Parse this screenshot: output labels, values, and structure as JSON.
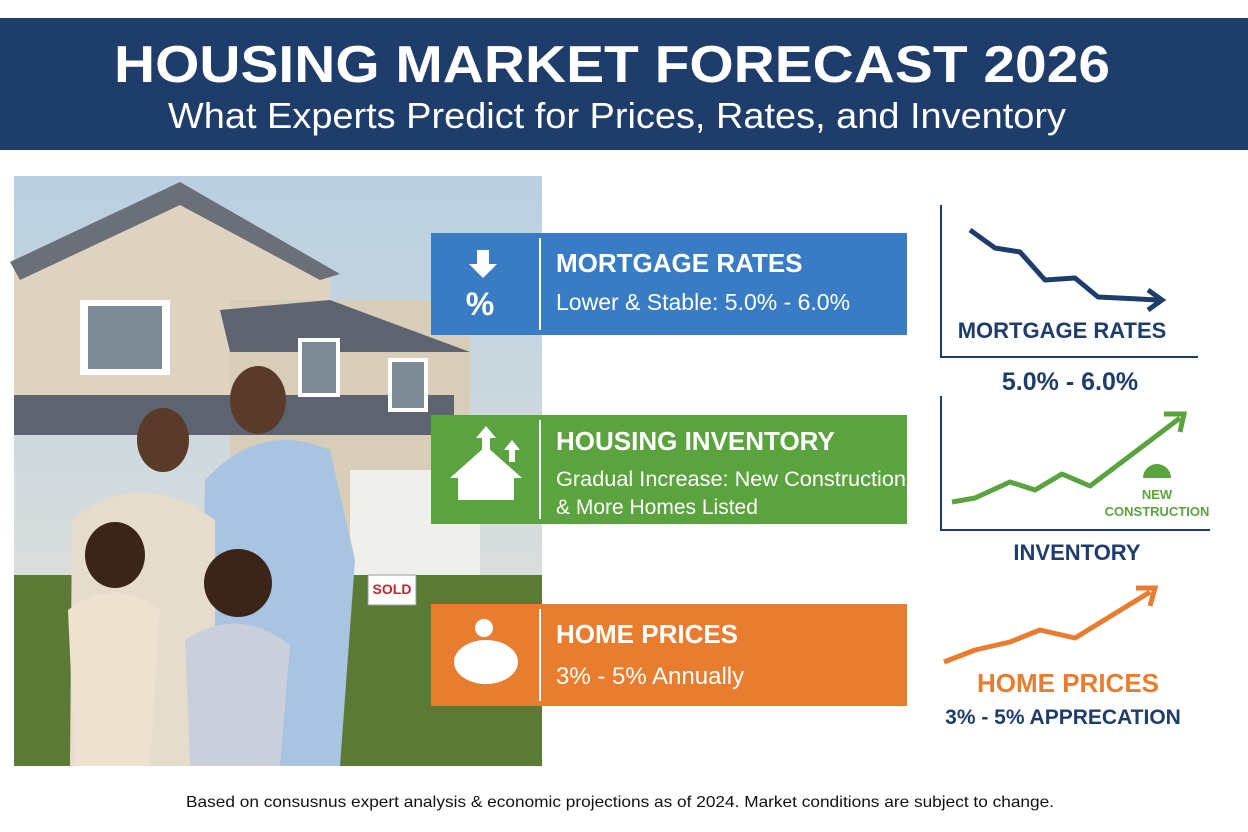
{
  "header": {
    "title": "HOUSING MARKET FORECAST 2026",
    "subtitle": "What Experts Predict for Prices, Rates, and Inventory"
  },
  "photo": {
    "sign": "SOLD"
  },
  "cards": [
    {
      "title": "MORTGAGE RATES",
      "lines": [
        "Lower & Stable: 5.0% - 6.0%"
      ]
    },
    {
      "title": "HOUSING INVENTORY",
      "lines": [
        "Gradual Increase: New Construction",
        "& More Homes Listed"
      ]
    },
    {
      "title": "HOME PRICES",
      "lines": [
        "3% - 5% Annually"
      ]
    }
  ],
  "mini_charts": [
    {
      "label": "MORTGAGE RATES",
      "value": "5.0% - 6.0%"
    },
    {
      "badge": [
        "NEW",
        "CONSTRUCTION"
      ],
      "label": "INVENTORY"
    },
    {
      "label": "HOME PRICES",
      "value": "3% - 5% APPRECATION"
    }
  ],
  "footer": "Based on consusnus expert analysis & economic projections as of 2024. Market conditions are subject to change."
}
